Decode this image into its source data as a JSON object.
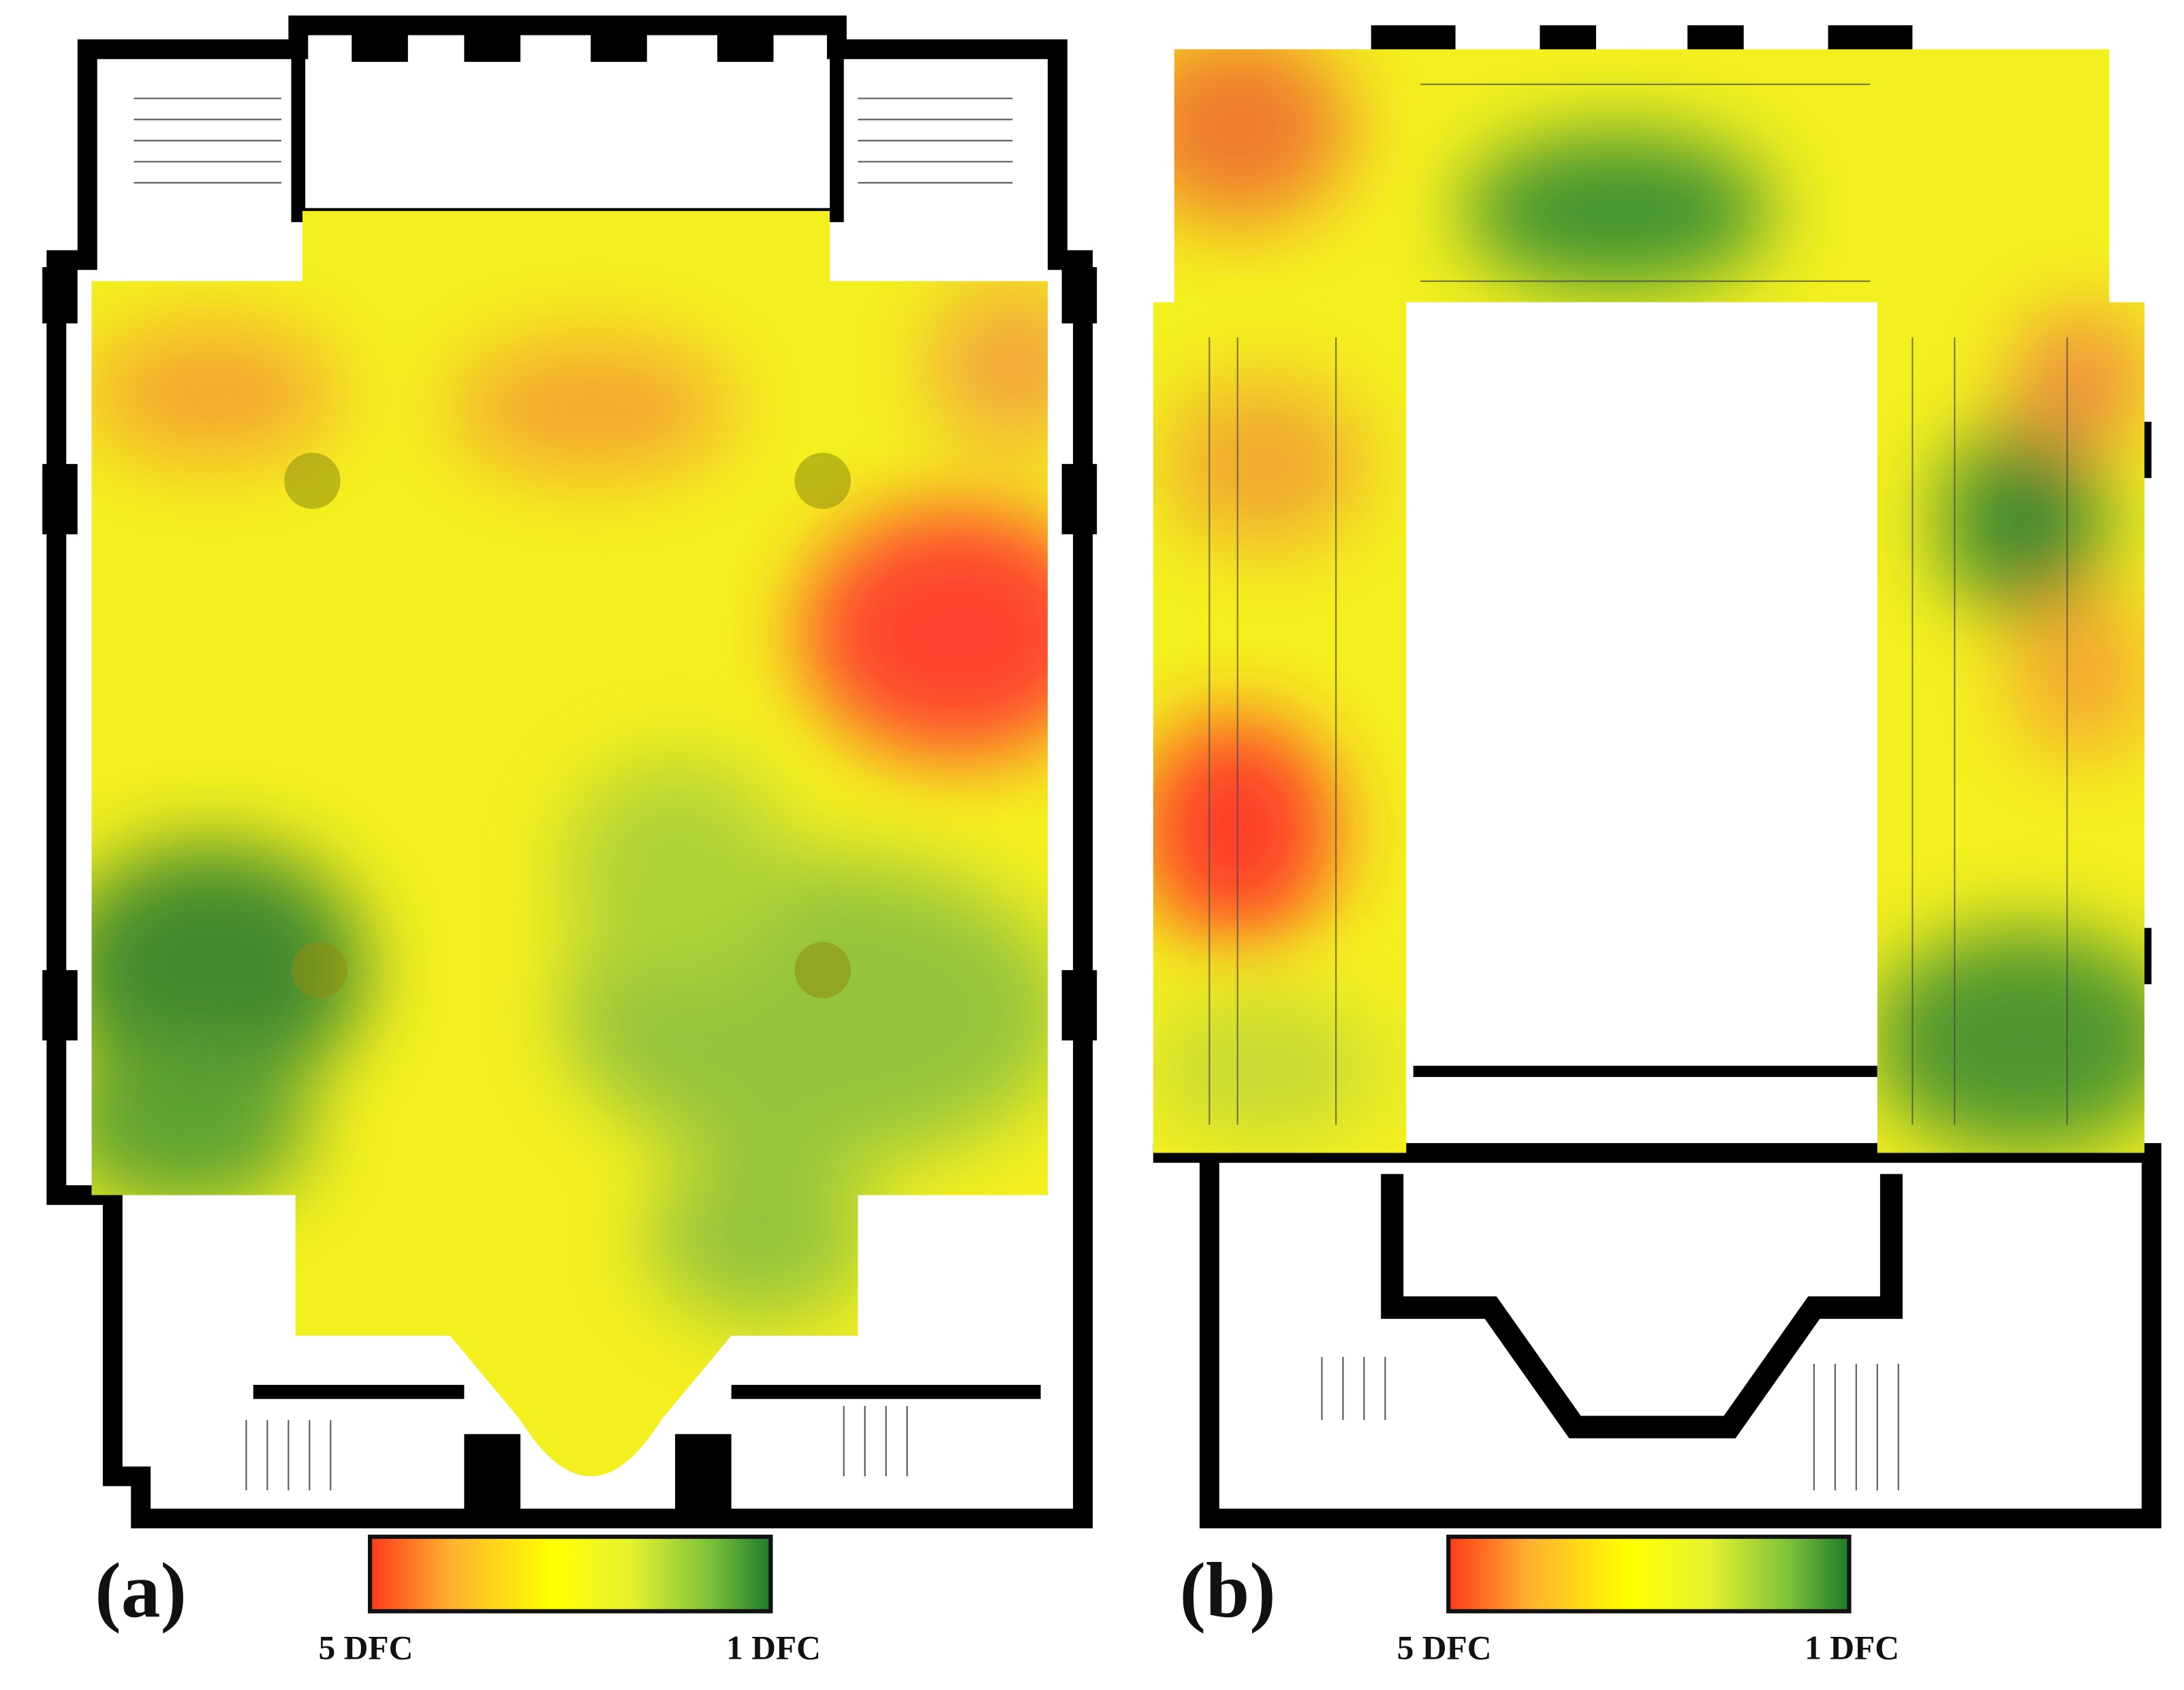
{
  "panels": [
    {
      "label": "(a)",
      "legend": {
        "min_label": "5 DFC",
        "max_label": "1 DFC"
      }
    },
    {
      "label": "(b)",
      "legend": {
        "min_label": "5 DFC",
        "max_label": "1 DFC"
      }
    }
  ]
}
